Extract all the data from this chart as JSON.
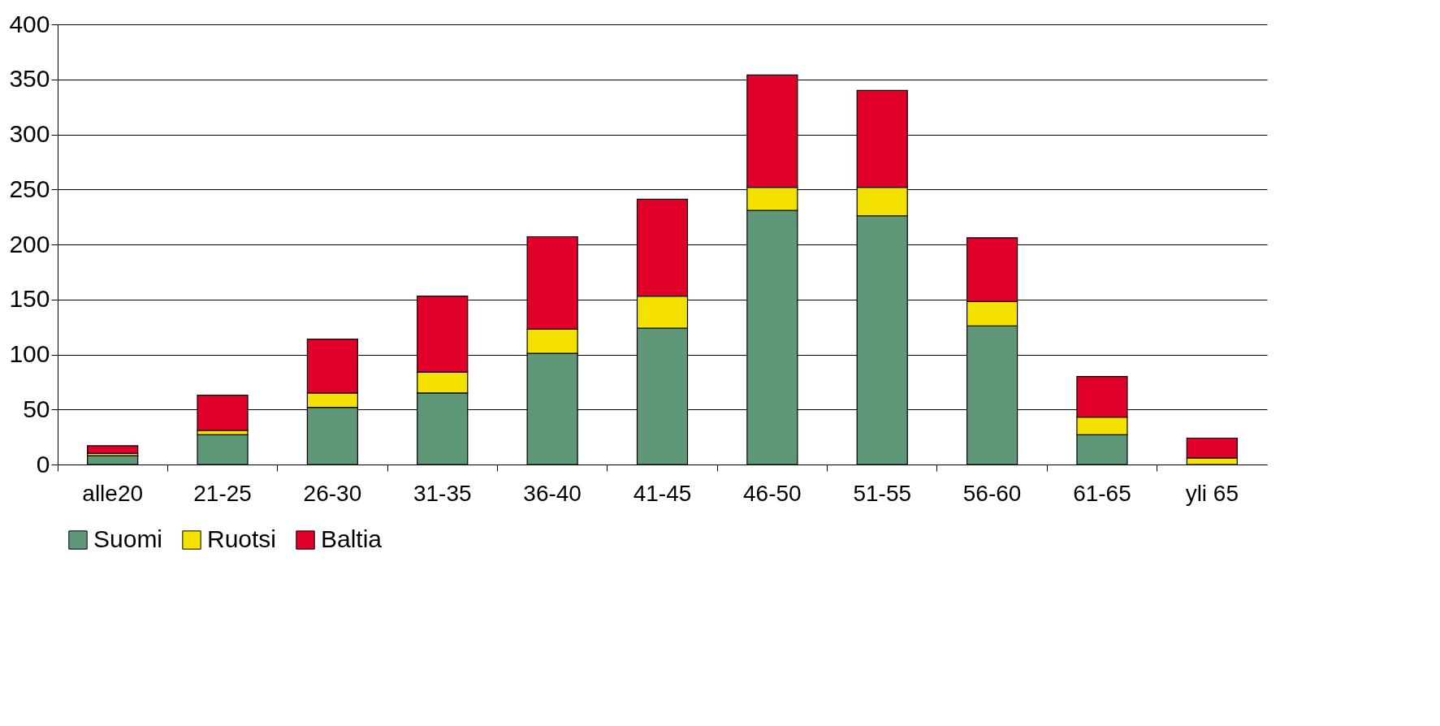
{
  "chart_data": {
    "type": "bar",
    "stacked": true,
    "categories": [
      "alle20",
      "21-25",
      "26-30",
      "31-35",
      "36-40",
      "41-45",
      "46-50",
      "51-55",
      "56-60",
      "61-65",
      "yli 65"
    ],
    "series": [
      {
        "name": "Suomi",
        "color": "#5f9878",
        "values": [
          8,
          27,
          52,
          65,
          101,
          124,
          231,
          226,
          126,
          27,
          0
        ]
      },
      {
        "name": "Ruotsi",
        "color": "#f5e100",
        "values": [
          2,
          4,
          13,
          19,
          22,
          29,
          21,
          26,
          22,
          16,
          6
        ]
      },
      {
        "name": "Baltia",
        "color": "#e0002a",
        "values": [
          7,
          32,
          49,
          69,
          84,
          88,
          102,
          88,
          58,
          37,
          18
        ]
      }
    ],
    "ylim": [
      0,
      400
    ],
    "yticks": [
      0,
      50,
      100,
      150,
      200,
      250,
      300,
      350,
      400
    ],
    "grid": "y",
    "legend": "bottom"
  }
}
